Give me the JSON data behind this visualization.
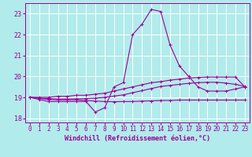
{
  "title": "",
  "xlabel": "Windchill (Refroidissement éolien,°C)",
  "ylabel": "",
  "bg_color": "#b2ebeb",
  "grid_color": "#ffffff",
  "line_color": "#990099",
  "xlim": [
    -0.5,
    23.5
  ],
  "ylim": [
    17.8,
    23.5
  ],
  "xticks": [
    0,
    1,
    2,
    3,
    4,
    5,
    6,
    7,
    8,
    9,
    10,
    11,
    12,
    13,
    14,
    15,
    16,
    17,
    18,
    19,
    20,
    21,
    22,
    23
  ],
  "yticks": [
    18,
    19,
    20,
    21,
    22,
    23
  ],
  "line1": [
    19.0,
    18.9,
    18.8,
    18.8,
    18.8,
    18.8,
    18.8,
    18.3,
    18.5,
    19.5,
    19.7,
    22.0,
    22.5,
    23.2,
    23.1,
    21.5,
    20.5,
    20.0,
    19.5,
    19.3,
    19.3,
    19.3,
    19.4,
    19.5
  ],
  "line2": [
    19.0,
    19.0,
    19.0,
    19.05,
    19.05,
    19.1,
    19.1,
    19.15,
    19.2,
    19.3,
    19.4,
    19.5,
    19.6,
    19.7,
    19.75,
    19.82,
    19.87,
    19.92,
    19.95,
    19.97,
    19.97,
    19.97,
    19.97,
    19.5
  ],
  "line3": [
    19.0,
    18.97,
    18.94,
    18.92,
    18.92,
    18.93,
    18.94,
    18.96,
    19.0,
    19.06,
    19.12,
    19.22,
    19.32,
    19.42,
    19.52,
    19.57,
    19.62,
    19.67,
    19.7,
    19.72,
    19.72,
    19.68,
    19.62,
    19.52
  ],
  "line4": [
    19.0,
    18.95,
    18.9,
    18.88,
    18.88,
    18.88,
    18.85,
    18.82,
    18.8,
    18.79,
    18.8,
    18.8,
    18.82,
    18.83,
    18.85,
    18.85,
    18.87,
    18.87,
    18.87,
    18.87,
    18.87,
    18.87,
    18.87,
    18.87
  ],
  "xlabel_fontsize": 6,
  "tick_fontsize": 5.5
}
